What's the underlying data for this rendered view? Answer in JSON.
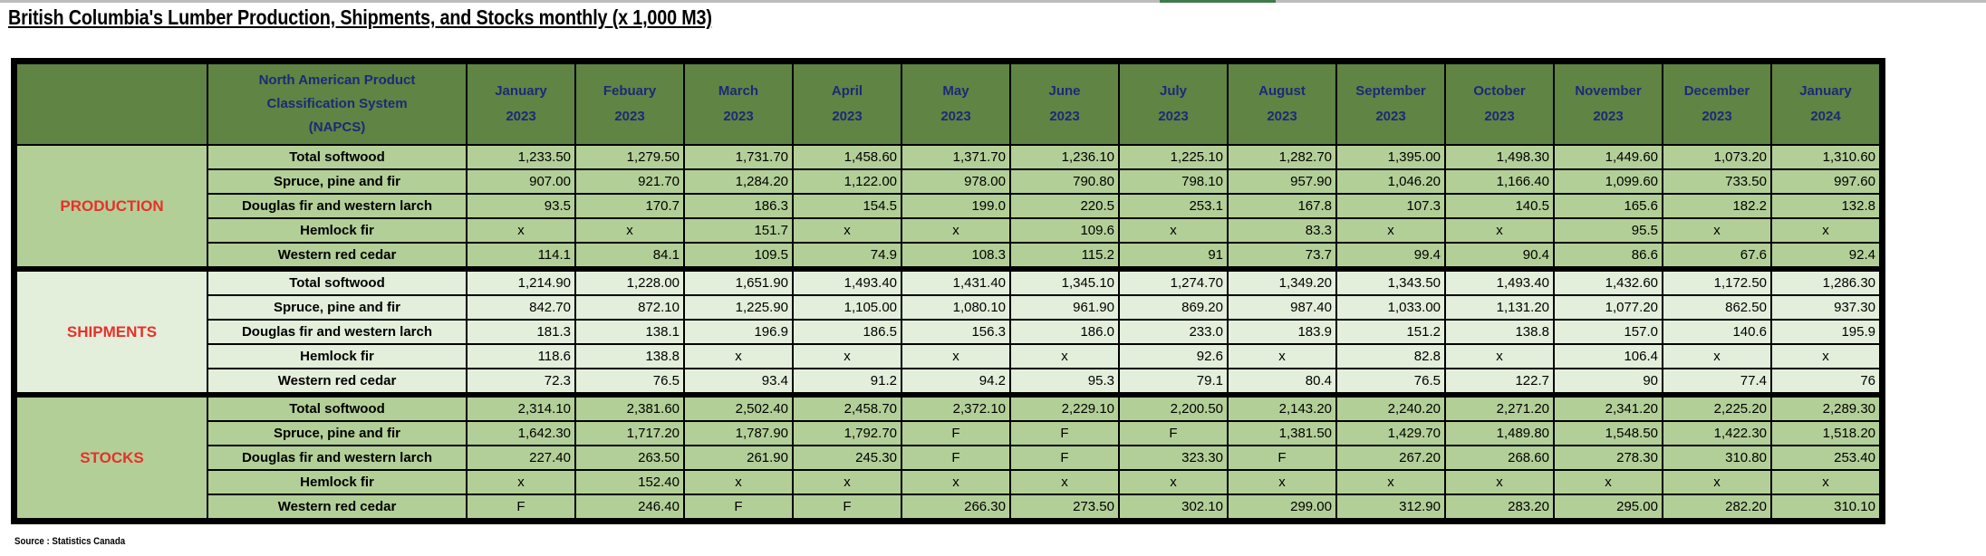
{
  "title": "British Columbia's Lumber Production, Shipments, and Stocks monthly (x 1,000 M3)",
  "source": "Source : Statistics Canada",
  "colors": {
    "header_bg": "#5f8443",
    "header_text": "#1b2a78",
    "group_label": "#e8302a",
    "dark_row": "#b3cf98",
    "light_row": "#e3eedb"
  },
  "header": {
    "napcs": [
      "North American Product",
      "Classification System",
      "(NAPCS)"
    ],
    "months": [
      [
        "January",
        "2023"
      ],
      [
        "Febuary",
        "2023"
      ],
      [
        "March",
        "2023"
      ],
      [
        "April",
        "2023"
      ],
      [
        "May",
        "2023"
      ],
      [
        "June",
        "2023"
      ],
      [
        "July",
        "2023"
      ],
      [
        "August",
        "2023"
      ],
      [
        "September",
        "2023"
      ],
      [
        "October",
        "2023"
      ],
      [
        "November",
        "2023"
      ],
      [
        "December",
        "2023"
      ],
      [
        "January",
        "2024"
      ]
    ]
  },
  "groups": [
    {
      "name": "PRODUCTION",
      "shade": "dark",
      "rows": [
        {
          "label": "Total softwood",
          "values": [
            "1,233.50",
            "1,279.50",
            "1,731.70",
            "1,458.60",
            "1,371.70",
            "1,236.10",
            "1,225.10",
            "1,282.70",
            "1,395.00",
            "1,498.30",
            "1,449.60",
            "1,073.20",
            "1,310.60"
          ]
        },
        {
          "label": "Spruce, pine and fir",
          "values": [
            "907.00",
            "921.70",
            "1,284.20",
            "1,122.00",
            "978.00",
            "790.80",
            "798.10",
            "957.90",
            "1,046.20",
            "1,166.40",
            "1,099.60",
            "733.50",
            "997.60"
          ]
        },
        {
          "label": "Douglas fir and western larch",
          "values": [
            "93.5",
            "170.7",
            "186.3",
            "154.5",
            "199.0",
            "220.5",
            "253.1",
            "167.8",
            "107.3",
            "140.5",
            "165.6",
            "182.2",
            "132.8"
          ]
        },
        {
          "label": "Hemlock fir",
          "values": [
            "x",
            "x",
            "151.7",
            "x",
            "x",
            "109.6",
            "x",
            "83.3",
            "x",
            "x",
            "95.5",
            "x",
            "x"
          ]
        },
        {
          "label": "Western red cedar",
          "values": [
            "114.1",
            "84.1",
            "109.5",
            "74.9",
            "108.3",
            "115.2",
            "91",
            "73.7",
            "99.4",
            "90.4",
            "86.6",
            "67.6",
            "92.4"
          ]
        }
      ]
    },
    {
      "name": "SHIPMENTS",
      "shade": "light",
      "rows": [
        {
          "label": "Total softwood",
          "values": [
            "1,214.90",
            "1,228.00",
            "1,651.90",
            "1,493.40",
            "1,431.40",
            "1,345.10",
            "1,274.70",
            "1,349.20",
            "1,343.50",
            "1,493.40",
            "1,432.60",
            "1,172.50",
            "1,286.30"
          ]
        },
        {
          "label": "Spruce, pine and fir",
          "values": [
            "842.70",
            "872.10",
            "1,225.90",
            "1,105.00",
            "1,080.10",
            "961.90",
            "869.20",
            "987.40",
            "1,033.00",
            "1,131.20",
            "1,077.20",
            "862.50",
            "937.30"
          ]
        },
        {
          "label": "Douglas fir and western larch",
          "values": [
            "181.3",
            "138.1",
            "196.9",
            "186.5",
            "156.3",
            "186.0",
            "233.0",
            "183.9",
            "151.2",
            "138.8",
            "157.0",
            "140.6",
            "195.9"
          ]
        },
        {
          "label": "Hemlock fir",
          "values": [
            "118.6",
            "138.8",
            "x",
            "x",
            "x",
            "x",
            "92.6",
            "x",
            "82.8",
            "x",
            "106.4",
            "x",
            "x"
          ]
        },
        {
          "label": "Western red cedar",
          "values": [
            "72.3",
            "76.5",
            "93.4",
            "91.2",
            "94.2",
            "95.3",
            "79.1",
            "80.4",
            "76.5",
            "122.7",
            "90",
            "77.4",
            "76"
          ]
        }
      ]
    },
    {
      "name": "STOCKS",
      "shade": "dark",
      "rows": [
        {
          "label": "Total softwood",
          "values": [
            "2,314.10",
            "2,381.60",
            "2,502.40",
            "2,458.70",
            "2,372.10",
            "2,229.10",
            "2,200.50",
            "2,143.20",
            "2,240.20",
            "2,271.20",
            "2,341.20",
            "2,225.20",
            "2,289.30"
          ]
        },
        {
          "label": "Spruce, pine and fir",
          "values": [
            "1,642.30",
            "1,717.20",
            "1,787.90",
            "1,792.70",
            "F",
            "F",
            "F",
            "1,381.50",
            "1,429.70",
            "1,489.80",
            "1,548.50",
            "1,422.30",
            "1,518.20"
          ]
        },
        {
          "label": "Douglas fir and western larch",
          "values": [
            "227.40",
            "263.50",
            "261.90",
            "245.30",
            "F",
            "F",
            "323.30",
            "F",
            "267.20",
            "268.60",
            "278.30",
            "310.80",
            "253.40"
          ]
        },
        {
          "label": "Hemlock fir",
          "values": [
            "x",
            "152.40",
            "x",
            "x",
            "x",
            "x",
            "x",
            "x",
            "x",
            "x",
            "x",
            "x",
            "x"
          ]
        },
        {
          "label": "Western red cedar",
          "values": [
            "F",
            "246.40",
            "F",
            "F",
            "266.30",
            "273.50",
            "302.10",
            "299.00",
            "312.90",
            "283.20",
            "295.00",
            "282.20",
            "310.10"
          ]
        }
      ]
    }
  ]
}
